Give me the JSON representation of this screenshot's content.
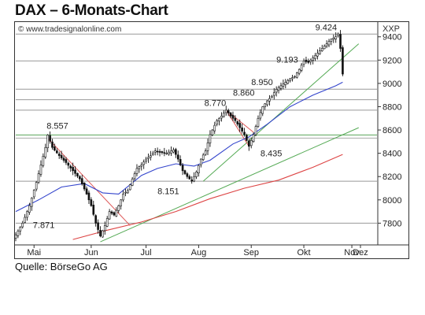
{
  "title": "DAX – 6-Monats-Chart",
  "source": "Quelle: BörseGo AG",
  "chart_data": {
    "type": "candlestick",
    "copyright": "© www.tradesignalonline.com",
    "y_unit": "XXP",
    "ylim": [
      7620,
      9520
    ],
    "y_ticks": [
      "7800",
      "8000",
      "8200",
      "8400",
      "8600",
      "8800",
      "9000",
      "9200",
      "9400"
    ],
    "months": [
      "Mai",
      "Jun",
      "Jul",
      "Aug",
      "Sep",
      "Okt",
      "Nov",
      "Dez"
    ],
    "x_range_days": 158,
    "month_positions": [
      8,
      33,
      57,
      80,
      103,
      126,
      147,
      170
    ],
    "ohlc_anchors": [
      [
        0,
        7700
      ],
      [
        3,
        7800
      ],
      [
        6,
        7950
      ],
      [
        9,
        8150
      ],
      [
        11,
        8300
      ],
      [
        13,
        8450
      ],
      [
        14,
        8557
      ],
      [
        16,
        8450
      ],
      [
        19,
        8380
      ],
      [
        22,
        8320
      ],
      [
        25,
        8250
      ],
      [
        28,
        8180
      ],
      [
        31,
        8050
      ],
      [
        33,
        7950
      ],
      [
        35,
        7800
      ],
      [
        37,
        7690
      ],
      [
        39,
        7780
      ],
      [
        41,
        7900
      ],
      [
        43,
        7870
      ],
      [
        45,
        7950
      ],
      [
        47,
        8050
      ],
      [
        49,
        8080
      ],
      [
        51,
        8180
      ],
      [
        53,
        8270
      ],
      [
        55,
        8300
      ],
      [
        57,
        8350
      ],
      [
        59,
        8380
      ],
      [
        61,
        8420
      ],
      [
        63,
        8410
      ],
      [
        66,
        8400
      ],
      [
        69,
        8430
      ],
      [
        71,
        8350
      ],
      [
        73,
        8250
      ],
      [
        75,
        8200
      ],
      [
        77,
        8160
      ],
      [
        79,
        8240
      ],
      [
        81,
        8350
      ],
      [
        83,
        8420
      ],
      [
        85,
        8560
      ],
      [
        88,
        8680
      ],
      [
        90,
        8720
      ],
      [
        92,
        8770
      ],
      [
        94,
        8720
      ],
      [
        96,
        8680
      ],
      [
        98,
        8620
      ],
      [
        100,
        8560
      ],
      [
        102,
        8460
      ],
      [
        104,
        8560
      ],
      [
        106,
        8700
      ],
      [
        108,
        8800
      ],
      [
        110,
        8850
      ],
      [
        112,
        8890
      ],
      [
        114,
        8950
      ],
      [
        116,
        8980
      ],
      [
        118,
        9010
      ],
      [
        120,
        9040
      ],
      [
        122,
        9060
      ],
      [
        124,
        9120
      ],
      [
        126,
        9193
      ],
      [
        128,
        9180
      ],
      [
        130,
        9220
      ],
      [
        132,
        9260
      ],
      [
        134,
        9300
      ],
      [
        136,
        9340
      ],
      [
        138,
        9380
      ],
      [
        140,
        9400
      ],
      [
        141,
        9424
      ],
      [
        142,
        9300
      ],
      [
        143,
        9080
      ]
    ],
    "series": [
      {
        "name": "",
        "color": "#3344cc",
        "points": [
          [
            0,
            7900
          ],
          [
            10,
            8000
          ],
          [
            20,
            8110
          ],
          [
            30,
            8140
          ],
          [
            38,
            8060
          ],
          [
            45,
            8050
          ],
          [
            55,
            8210
          ],
          [
            62,
            8270
          ],
          [
            70,
            8310
          ],
          [
            78,
            8290
          ],
          [
            85,
            8340
          ],
          [
            95,
            8480
          ],
          [
            102,
            8540
          ],
          [
            110,
            8650
          ],
          [
            120,
            8800
          ],
          [
            130,
            8900
          ],
          [
            140,
            8980
          ],
          [
            143,
            9010
          ]
        ]
      },
      {
        "name": "",
        "color": "#dd4444",
        "points": [
          [
            25,
            7660
          ],
          [
            40,
            7740
          ],
          [
            55,
            7810
          ],
          [
            70,
            7900
          ],
          [
            85,
            8010
          ],
          [
            100,
            8100
          ],
          [
            115,
            8170
          ],
          [
            130,
            8280
          ],
          [
            143,
            8390
          ]
        ]
      }
    ],
    "horizontal_lines": [
      {
        "value": 7800,
        "color": "#999999"
      },
      {
        "value": 8160,
        "color": "#999999"
      },
      {
        "value": 8557,
        "color": "#5aa55a"
      },
      {
        "value": 8530,
        "color": "#aaaaaa"
      },
      {
        "value": 8770,
        "color": "#999999"
      },
      {
        "value": 8860,
        "color": "#999999"
      },
      {
        "value": 8950,
        "color": "#999999"
      },
      {
        "value": 9193,
        "color": "#999999"
      },
      {
        "value": 9424,
        "color": "#999999"
      }
    ],
    "trend_lines": [
      {
        "color": "#55aa55",
        "from": [
          37,
          7640
        ],
        "to": [
          150,
          8620
        ]
      },
      {
        "color": "#55aa55",
        "from": [
          82,
          8160
        ],
        "to": [
          150,
          9340
        ]
      },
      {
        "color": "#dd5555",
        "from": [
          14,
          8530
        ],
        "to": [
          50,
          7780
        ]
      },
      {
        "color": "#dd5555",
        "from": [
          92,
          8770
        ],
        "to": [
          104,
          8580
        ]
      },
      {
        "color": "#dd5555",
        "from": [
          92,
          8770
        ],
        "to": [
          102,
          8460
        ]
      }
    ],
    "annotations": [
      {
        "text": "8.557",
        "x": 13.5,
        "y": 8610
      },
      {
        "text": "7.871",
        "x": 7.5,
        "y": 7760
      },
      {
        "text": "8.151",
        "x": 62,
        "y": 8050
      },
      {
        "text": "8.770",
        "x": 82.5,
        "y": 8805
      },
      {
        "text": "8.860",
        "x": 95,
        "y": 8895
      },
      {
        "text": "8.950",
        "x": 103,
        "y": 8985
      },
      {
        "text": "9.193",
        "x": 114,
        "y": 9180
      },
      {
        "text": "8.435",
        "x": 107,
        "y": 8375
      },
      {
        "text": "9.424",
        "x": 131,
        "y": 9455
      }
    ]
  }
}
